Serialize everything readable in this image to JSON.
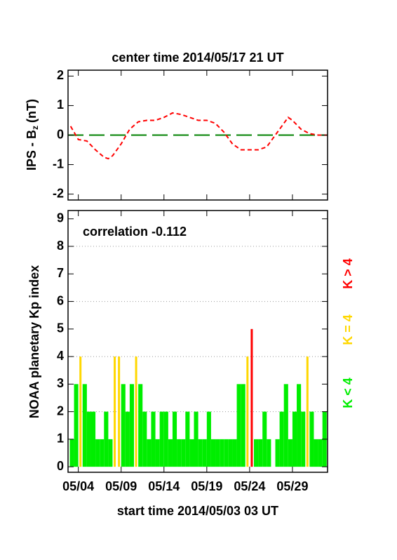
{
  "chart_data": [
    {
      "type": "line",
      "title": "center time 2014/05/17 21 UT",
      "ylabel": "IPS - B",
      "ylabel_sub": "z",
      "ylabel_unit": "(nT)",
      "x": [
        3.1,
        4,
        5,
        6,
        7,
        7.5,
        8,
        9,
        10,
        11,
        12,
        13,
        14,
        15,
        16,
        17,
        18,
        19,
        20,
        21,
        22,
        23,
        24,
        25,
        26,
        27,
        28,
        28.5,
        29,
        30,
        31,
        32,
        33
      ],
      "series": [
        {
          "name": "IPS Bz",
          "color": "#ff0000",
          "values": [
            0.3,
            -0.15,
            -0.2,
            -0.5,
            -0.75,
            -0.8,
            -0.7,
            -0.3,
            0.2,
            0.45,
            0.5,
            0.5,
            0.6,
            0.75,
            0.7,
            0.6,
            0.5,
            0.5,
            0.4,
            0.1,
            -0.3,
            -0.5,
            -0.5,
            -0.5,
            -0.4,
            0.0,
            0.4,
            0.6,
            0.5,
            0.2,
            0.05,
            0.0,
            0.0
          ]
        }
      ],
      "zero_line": {
        "value": 0,
        "color": "#008000"
      },
      "xlim": [
        2.8,
        33.1
      ],
      "ylim": [
        -2.2,
        2.2
      ],
      "yticks": [
        -2,
        -1,
        0,
        1,
        2
      ]
    },
    {
      "type": "bar",
      "annotation": "correlation -0.112",
      "ylabel": "NOAA planetary Kp index",
      "xlabel": "start time 2014/05/03 03 UT",
      "x": [
        3.0,
        3.5,
        4.0,
        4.5,
        5.0,
        5.5,
        6.0,
        6.5,
        7.0,
        7.5,
        8.0,
        8.5,
        9.0,
        9.5,
        10.0,
        10.5,
        11.0,
        11.5,
        12.0,
        12.5,
        13.0,
        13.5,
        14.0,
        14.5,
        15.0,
        15.5,
        16.0,
        16.5,
        17.0,
        17.5,
        18.0,
        18.5,
        19.0,
        19.5,
        20.0,
        20.5,
        21.0,
        21.5,
        22.0,
        22.5,
        23.0,
        23.5,
        24.0,
        24.5,
        25.0,
        25.5,
        26.0,
        26.5,
        27.0,
        27.5,
        28.0,
        28.5,
        29.0,
        29.5,
        30.0,
        30.5,
        31.0,
        31.5,
        32.0,
        32.5
      ],
      "values": [
        1,
        3,
        4,
        3,
        2,
        2,
        1,
        1,
        2,
        1,
        4,
        4,
        3,
        2,
        3,
        4,
        3,
        2,
        1,
        2,
        1,
        2,
        2,
        1,
        2,
        1,
        1,
        2,
        1,
        2,
        1,
        1,
        2,
        1,
        1,
        1,
        1,
        1,
        1,
        3,
        3,
        4,
        5,
        1,
        1,
        2,
        1,
        0,
        1,
        2,
        3,
        1,
        2,
        3,
        2,
        4,
        2,
        1,
        1,
        2
      ],
      "color_threshold": 4,
      "legend": [
        {
          "label": "K < 4",
          "color": "#00ee00"
        },
        {
          "label": "K = 4",
          "color": "#ffd700"
        },
        {
          "label": "K > 4",
          "color": "#ff0000"
        }
      ],
      "xlim": [
        2.8,
        33.1
      ],
      "ylim": [
        -0.2,
        9.3
      ],
      "yticks": [
        0,
        1,
        2,
        3,
        4,
        5,
        6,
        7,
        8,
        9
      ],
      "grid": [
        2,
        4,
        6,
        8
      ],
      "xticks": [
        {
          "value": 4,
          "label": "05/04"
        },
        {
          "value": 9,
          "label": "05/09"
        },
        {
          "value": 14,
          "label": "05/14"
        },
        {
          "value": 19,
          "label": "05/19"
        },
        {
          "value": 24,
          "label": "05/24"
        },
        {
          "value": 29,
          "label": "05/29"
        }
      ]
    }
  ]
}
